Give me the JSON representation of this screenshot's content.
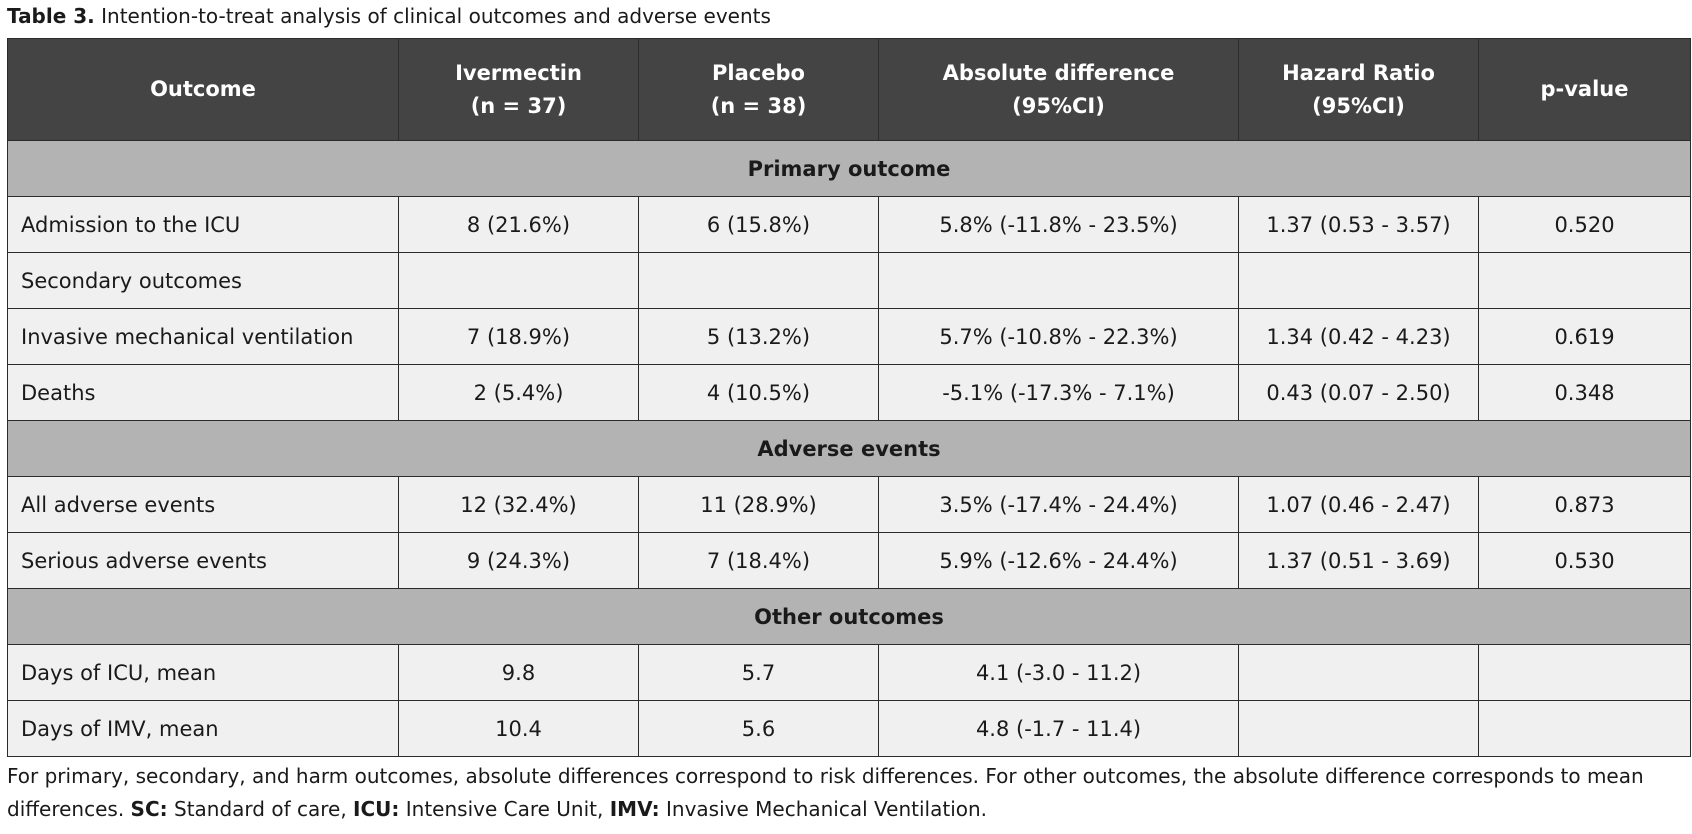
{
  "caption": {
    "label": "Table 3.",
    "text": " Intention-to-treat analysis of clinical outcomes and adverse events"
  },
  "header": {
    "outcome": "Outcome",
    "ivermectin_line1": "Ivermectin",
    "ivermectin_line2": "(n = 37)",
    "placebo_line1": "Placebo",
    "placebo_line2": "(n = 38)",
    "absdiff_line1": "Absolute difference",
    "absdiff_line2": "(95%CI)",
    "hr_line1": "Hazard Ratio",
    "hr_line2": "(95%CI)",
    "pvalue": "p-value"
  },
  "sections": {
    "primary": "Primary outcome",
    "adverse": "Adverse events",
    "other": "Other outcomes"
  },
  "rows": [
    {
      "outcome": "Admission to the ICU",
      "ivermectin": "8 (21.6%)",
      "placebo": "6 (15.8%)",
      "absdiff": "5.8% (-11.8% - 23.5%)",
      "hr": "1.37 (0.53 - 3.57)",
      "p": "0.520"
    },
    {
      "outcome": "Secondary outcomes",
      "ivermectin": "",
      "placebo": "",
      "absdiff": "",
      "hr": "",
      "p": ""
    },
    {
      "outcome": "Invasive mechanical ventilation",
      "ivermectin": "7 (18.9%)",
      "placebo": "5 (13.2%)",
      "absdiff": "5.7% (-10.8% - 22.3%)",
      "hr": "1.34 (0.42 - 4.23)",
      "p": "0.619"
    },
    {
      "outcome": "Deaths",
      "ivermectin": "2 (5.4%)",
      "placebo": "4 (10.5%)",
      "absdiff": "-5.1% (-17.3% - 7.1%)",
      "hr": "0.43 (0.07 - 2.50)",
      "p": "0.348"
    },
    {
      "outcome": "All adverse events",
      "ivermectin": "12 (32.4%)",
      "placebo": "11 (28.9%)",
      "absdiff": "3.5% (-17.4% - 24.4%)",
      "hr": "1.07 (0.46 - 2.47)",
      "p": "0.873"
    },
    {
      "outcome": "Serious adverse events",
      "ivermectin": "9 (24.3%)",
      "placebo": "7 (18.4%)",
      "absdiff": "5.9% (-12.6% - 24.4%)",
      "hr": "1.37 (0.51 - 3.69)",
      "p": "0.530"
    },
    {
      "outcome": "Days of ICU, mean",
      "ivermectin": "9.8",
      "placebo": "5.7",
      "absdiff": "4.1 (-3.0 - 11.2)",
      "hr": "",
      "p": ""
    },
    {
      "outcome": "Days of IMV, mean",
      "ivermectin": "10.4",
      "placebo": "5.6",
      "absdiff": "4.8 (-1.7 - 11.4)",
      "hr": "",
      "p": ""
    }
  ],
  "footnote": {
    "text1": "For primary, secondary, and harm outcomes, absolute differences correspond to risk differences. For other outcomes, the absolute difference corresponds to mean differences. ",
    "sc_abbr": "SC:",
    "sc_text": " Standard of care, ",
    "icu_abbr": "ICU:",
    "icu_text": " Intensive Care Unit, ",
    "imv_abbr": "IMV:",
    "imv_text": " Invasive Mechanical Ventilation."
  }
}
